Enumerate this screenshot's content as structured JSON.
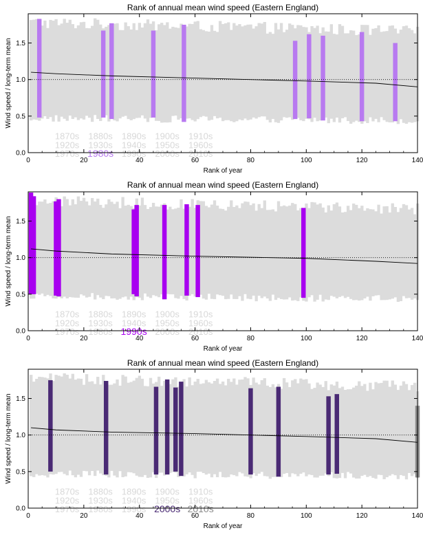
{
  "colors": {
    "background_bar": "#dcdcdc",
    "axis": "#000000",
    "faded_decade_label": "#d8d8d8",
    "highlight_1980s": "#b87af0",
    "highlight_1990s": "#a800f0",
    "highlight_2000s": "#4a2a74",
    "highlight_2010s": "#8c8c8c"
  },
  "decade_labels": [
    [
      "1870s",
      "1880s",
      "1890s",
      "1900s",
      "1910s"
    ],
    [
      "1920s",
      "1930s",
      "1940s",
      "1950s",
      "1960s"
    ],
    [
      "1970s",
      "1980s",
      "1990s",
      "2000s",
      "2010s"
    ]
  ],
  "chart_data": [
    {
      "type": "bar",
      "title": "Rank of annual mean wind speed (Eastern England)",
      "xlabel": "Rank of year",
      "ylabel": "Wind speed / long-term mean",
      "xlim": [
        0,
        140
      ],
      "ylim": [
        0,
        1.9
      ],
      "xticks": [
        0,
        20,
        40,
        60,
        80,
        100,
        120,
        140
      ],
      "yticks": [
        0.0,
        0.5,
        1.0,
        1.5
      ],
      "ytick_labels": [
        "0.0",
        "0.5",
        "1.0",
        "1.5"
      ],
      "reference_line_y": 1.0,
      "mean_curve": [
        [
          1,
          1.1
        ],
        [
          10,
          1.08
        ],
        [
          30,
          1.05
        ],
        [
          60,
          1.02
        ],
        [
          100,
          0.98
        ],
        [
          125,
          0.95
        ],
        [
          140,
          0.9
        ]
      ],
      "highlight_decade": "1980s",
      "highlight_color": "#b87af0",
      "highlighted_years": [
        {
          "rank": 4,
          "low": 0.48,
          "high": 1.83
        },
        {
          "rank": 27,
          "low": 0.48,
          "high": 1.67
        },
        {
          "rank": 30,
          "low": 0.46,
          "high": 1.77
        },
        {
          "rank": 45,
          "low": 0.48,
          "high": 1.67
        },
        {
          "rank": 56,
          "low": 0.42,
          "high": 1.75
        },
        {
          "rank": 96,
          "low": 0.46,
          "high": 1.53
        },
        {
          "rank": 101,
          "low": 0.47,
          "high": 1.62
        },
        {
          "rank": 106,
          "low": 0.44,
          "high": 1.6
        },
        {
          "rank": 120,
          "low": 0.43,
          "high": 1.65
        },
        {
          "rank": 132,
          "low": 0.43,
          "high": 1.5
        }
      ],
      "decade_highlights": {
        "1980s": "#b87af0"
      }
    },
    {
      "type": "bar",
      "title": "Rank of annual mean wind speed (Eastern England)",
      "xlabel": "Rank of year",
      "ylabel": "Wind speed / long-term mean",
      "xlim": [
        0,
        140
      ],
      "ylim": [
        0,
        1.9
      ],
      "xticks": [
        0,
        20,
        40,
        60,
        80,
        100,
        120,
        140
      ],
      "yticks": [
        0.0,
        0.5,
        1.0,
        1.5
      ],
      "ytick_labels": [
        "0.0",
        "0.5",
        "1.0",
        "1.5"
      ],
      "reference_line_y": 1.0,
      "mean_curve": [
        [
          1,
          1.12
        ],
        [
          10,
          1.09
        ],
        [
          30,
          1.05
        ],
        [
          60,
          1.02
        ],
        [
          100,
          0.99
        ],
        [
          125,
          0.95
        ],
        [
          140,
          0.92
        ]
      ],
      "highlight_decade": "1990s",
      "highlight_color": "#a800f0",
      "highlighted_years": [
        {
          "rank": 1,
          "low": 0.5,
          "high": 1.89
        },
        {
          "rank": 2,
          "low": 0.5,
          "high": 1.84
        },
        {
          "rank": 10,
          "low": 0.48,
          "high": 1.77
        },
        {
          "rank": 11,
          "low": 0.47,
          "high": 1.8
        },
        {
          "rank": 38,
          "low": 0.5,
          "high": 1.66
        },
        {
          "rank": 39,
          "low": 0.47,
          "high": 1.72
        },
        {
          "rank": 49,
          "low": 0.43,
          "high": 1.72
        },
        {
          "rank": 57,
          "low": 0.48,
          "high": 1.73
        },
        {
          "rank": 61,
          "low": 0.46,
          "high": 1.72
        },
        {
          "rank": 99,
          "low": 0.45,
          "high": 1.68
        }
      ],
      "decade_highlights": {
        "1990s": "#a800f0"
      }
    },
    {
      "type": "bar",
      "title": "Rank of annual mean wind speed (Eastern England)",
      "xlabel": "Rank of year",
      "ylabel": "Wind speed / long-term mean",
      "xlim": [
        0,
        140
      ],
      "ylim": [
        0,
        1.9
      ],
      "xticks": [
        0,
        20,
        40,
        60,
        80,
        100,
        120,
        140
      ],
      "yticks": [
        0.0,
        0.5,
        1.0,
        1.5
      ],
      "ytick_labels": [
        "0.0",
        "0.5",
        "1.0",
        "1.5"
      ],
      "reference_line_y": 1.0,
      "mean_curve": [
        [
          1,
          1.1
        ],
        [
          10,
          1.07
        ],
        [
          30,
          1.04
        ],
        [
          60,
          1.02
        ],
        [
          100,
          0.98
        ],
        [
          125,
          0.95
        ],
        [
          140,
          0.9
        ]
      ],
      "highlight_decade": "2000s",
      "highlight_color": "#4a2a74",
      "highlighted_years": [
        {
          "rank": 8,
          "low": 0.5,
          "high": 1.75
        },
        {
          "rank": 28,
          "low": 0.46,
          "high": 1.74
        },
        {
          "rank": 46,
          "low": 0.46,
          "high": 1.66
        },
        {
          "rank": 50,
          "low": 0.46,
          "high": 1.76
        },
        {
          "rank": 53,
          "low": 0.5,
          "high": 1.65
        },
        {
          "rank": 55,
          "low": 0.44,
          "high": 1.73
        },
        {
          "rank": 80,
          "low": 0.46,
          "high": 1.64
        },
        {
          "rank": 90,
          "low": 0.43,
          "high": 1.66
        },
        {
          "rank": 108,
          "low": 0.46,
          "high": 1.53
        },
        {
          "rank": 111,
          "low": 0.47,
          "high": 1.56
        }
      ],
      "decade_highlights": {
        "2000s": "#4a2a74",
        "2010s": "#8c8c8c"
      },
      "secondary_decade": "2010s",
      "secondary_color": "#8c8c8c",
      "secondary_years": [
        {
          "rank": 140,
          "low": 0.42,
          "high": 1.4
        }
      ]
    }
  ]
}
